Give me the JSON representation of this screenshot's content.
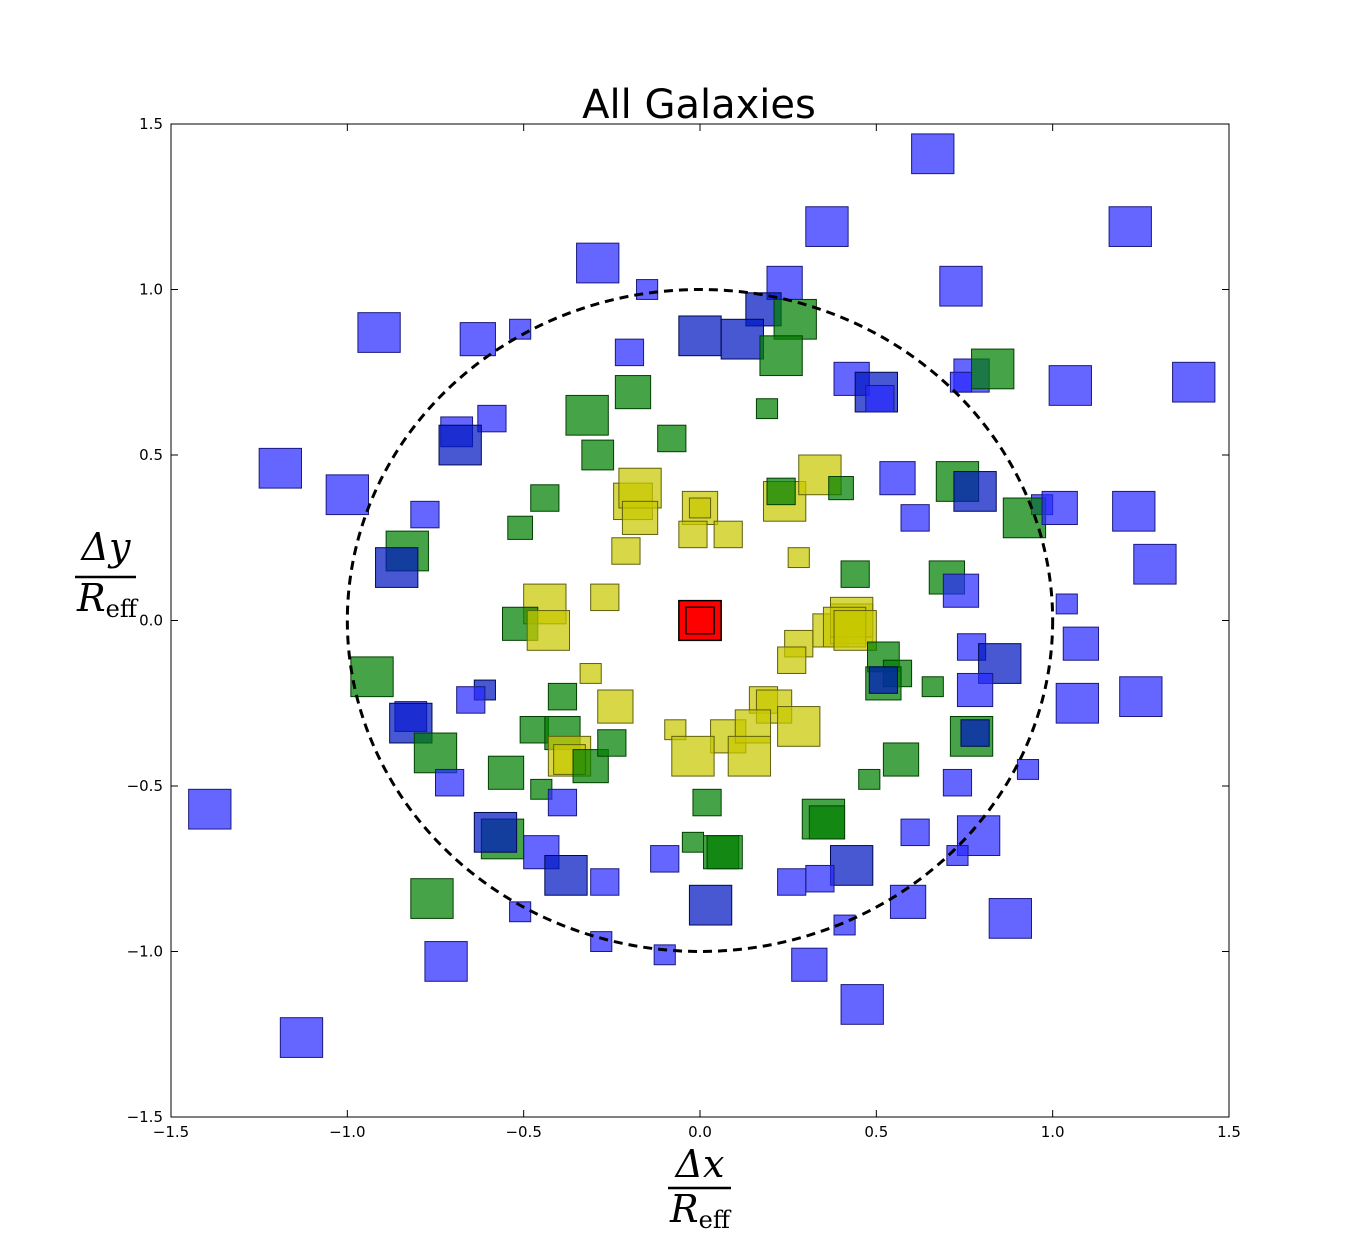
{
  "chart_data": {
    "type": "scatter",
    "title": "All Galaxies",
    "xlabel": {
      "numerator": "Δx",
      "denominator": "R",
      "subscript": "eff"
    },
    "ylabel": {
      "numerator": "Δy",
      "denominator": "R",
      "subscript": "eff"
    },
    "xlim": [
      -1.5,
      1.5
    ],
    "ylim": [
      -1.5,
      1.5
    ],
    "xticks": [
      "−1.5",
      "−1.0",
      "−0.5",
      "0.0",
      "0.5",
      "1.0",
      "1.5"
    ],
    "yticks": [
      "−1.5",
      "−1.0",
      "−0.5",
      "0.0",
      "0.5",
      "1.0",
      "1.5"
    ],
    "xtick_values": [
      -1.5,
      -1.0,
      -0.5,
      0.0,
      0.5,
      1.0,
      1.5
    ],
    "ytick_values": [
      -1.5,
      -1.0,
      -0.5,
      0.0,
      0.5,
      1.0,
      1.5
    ],
    "grid": false,
    "legend": "none",
    "colors": {
      "blue": "#2a2aff",
      "darkblue": "#0018c0",
      "green": "#008000",
      "yellow": "#c8c800",
      "red": "#ff0000"
    },
    "reference_circle": {
      "center": [
        0,
        0
      ],
      "radius": 1.0,
      "style": "dashed"
    },
    "points": [
      {
        "x": 0.66,
        "y": 1.41,
        "color": "blue",
        "size": 0.12
      },
      {
        "x": 0.36,
        "y": 1.19,
        "color": "blue",
        "size": 0.12
      },
      {
        "x": 1.22,
        "y": 1.19,
        "color": "blue",
        "size": 0.12
      },
      {
        "x": -0.29,
        "y": 1.08,
        "color": "blue",
        "size": 0.12
      },
      {
        "x": 0.24,
        "y": 1.02,
        "color": "blue",
        "size": 0.1
      },
      {
        "x": 0.74,
        "y": 1.01,
        "color": "blue",
        "size": 0.12
      },
      {
        "x": -0.15,
        "y": 1.0,
        "color": "blue",
        "size": 0.06
      },
      {
        "x": -0.91,
        "y": 0.87,
        "color": "blue",
        "size": 0.12
      },
      {
        "x": -0.63,
        "y": 0.85,
        "color": "blue",
        "size": 0.1
      },
      {
        "x": -0.51,
        "y": 0.88,
        "color": "blue",
        "size": 0.06
      },
      {
        "x": 0.18,
        "y": 0.94,
        "color": "darkblue",
        "size": 0.1
      },
      {
        "x": 0.27,
        "y": 0.91,
        "color": "green",
        "size": 0.12
      },
      {
        "x": 0.0,
        "y": 0.86,
        "color": "darkblue",
        "size": 0.12
      },
      {
        "x": 0.12,
        "y": 0.85,
        "color": "darkblue",
        "size": 0.12
      },
      {
        "x": 0.23,
        "y": 0.8,
        "color": "green",
        "size": 0.12
      },
      {
        "x": -0.2,
        "y": 0.81,
        "color": "blue",
        "size": 0.08
      },
      {
        "x": 0.43,
        "y": 0.73,
        "color": "blue",
        "size": 0.1
      },
      {
        "x": 0.5,
        "y": 0.69,
        "color": "darkblue",
        "size": 0.12
      },
      {
        "x": 0.51,
        "y": 0.67,
        "color": "blue",
        "size": 0.08
      },
      {
        "x": 0.77,
        "y": 0.74,
        "color": "blue",
        "size": 0.1
      },
      {
        "x": 0.74,
        "y": 0.72,
        "color": "blue",
        "size": 0.06
      },
      {
        "x": 0.83,
        "y": 0.76,
        "color": "green",
        "size": 0.12
      },
      {
        "x": 1.05,
        "y": 0.71,
        "color": "blue",
        "size": 0.12
      },
      {
        "x": 1.4,
        "y": 0.72,
        "color": "blue",
        "size": 0.12
      },
      {
        "x": -0.19,
        "y": 0.69,
        "color": "green",
        "size": 0.1
      },
      {
        "x": -0.32,
        "y": 0.62,
        "color": "green",
        "size": 0.12
      },
      {
        "x": 0.19,
        "y": 0.64,
        "color": "green",
        "size": 0.06
      },
      {
        "x": -0.08,
        "y": 0.55,
        "color": "green",
        "size": 0.08
      },
      {
        "x": -0.59,
        "y": 0.61,
        "color": "blue",
        "size": 0.08
      },
      {
        "x": -0.69,
        "y": 0.57,
        "color": "blue",
        "size": 0.09
      },
      {
        "x": -0.68,
        "y": 0.53,
        "color": "darkblue",
        "size": 0.12
      },
      {
        "x": -0.29,
        "y": 0.5,
        "color": "green",
        "size": 0.09
      },
      {
        "x": -1.19,
        "y": 0.46,
        "color": "blue",
        "size": 0.12
      },
      {
        "x": -1.0,
        "y": 0.38,
        "color": "blue",
        "size": 0.12
      },
      {
        "x": 0.56,
        "y": 0.43,
        "color": "blue",
        "size": 0.1
      },
      {
        "x": 0.73,
        "y": 0.42,
        "color": "green",
        "size": 0.12
      },
      {
        "x": 0.78,
        "y": 0.39,
        "color": "darkblue",
        "size": 0.12
      },
      {
        "x": -0.19,
        "y": 0.36,
        "color": "yellow",
        "size": 0.11
      },
      {
        "x": -0.17,
        "y": 0.4,
        "color": "yellow",
        "size": 0.12
      },
      {
        "x": -0.17,
        "y": 0.31,
        "color": "yellow",
        "size": 0.1
      },
      {
        "x": -0.44,
        "y": 0.37,
        "color": "green",
        "size": 0.08
      },
      {
        "x": 0.0,
        "y": 0.34,
        "color": "yellow",
        "size": 0.1
      },
      {
        "x": 0.0,
        "y": 0.34,
        "color": "yellow",
        "size": 0.06
      },
      {
        "x": 0.24,
        "y": 0.36,
        "color": "yellow",
        "size": 0.12
      },
      {
        "x": 0.23,
        "y": 0.39,
        "color": "green",
        "size": 0.08
      },
      {
        "x": 0.34,
        "y": 0.44,
        "color": "yellow",
        "size": 0.12
      },
      {
        "x": 0.4,
        "y": 0.4,
        "color": "green",
        "size": 0.07
      },
      {
        "x": 0.61,
        "y": 0.31,
        "color": "blue",
        "size": 0.08
      },
      {
        "x": 0.97,
        "y": 0.35,
        "color": "blue",
        "size": 0.06
      },
      {
        "x": 0.92,
        "y": 0.31,
        "color": "green",
        "size": 0.12
      },
      {
        "x": 1.02,
        "y": 0.34,
        "color": "blue",
        "size": 0.1
      },
      {
        "x": 1.23,
        "y": 0.33,
        "color": "blue",
        "size": 0.12
      },
      {
        "x": -0.78,
        "y": 0.32,
        "color": "blue",
        "size": 0.08
      },
      {
        "x": -0.51,
        "y": 0.28,
        "color": "green",
        "size": 0.07
      },
      {
        "x": -0.02,
        "y": 0.26,
        "color": "yellow",
        "size": 0.08
      },
      {
        "x": 0.08,
        "y": 0.26,
        "color": "yellow",
        "size": 0.08
      },
      {
        "x": -0.21,
        "y": 0.21,
        "color": "yellow",
        "size": 0.08
      },
      {
        "x": 0.28,
        "y": 0.19,
        "color": "yellow",
        "size": 0.06
      },
      {
        "x": -0.83,
        "y": 0.21,
        "color": "green",
        "size": 0.12
      },
      {
        "x": -0.86,
        "y": 0.16,
        "color": "darkblue",
        "size": 0.12
      },
      {
        "x": 0.44,
        "y": 0.14,
        "color": "green",
        "size": 0.08
      },
      {
        "x": 0.7,
        "y": 0.13,
        "color": "green",
        "size": 0.1
      },
      {
        "x": 0.74,
        "y": 0.09,
        "color": "blue",
        "size": 0.1
      },
      {
        "x": 1.29,
        "y": 0.17,
        "color": "blue",
        "size": 0.12
      },
      {
        "x": 1.04,
        "y": 0.05,
        "color": "blue",
        "size": 0.06
      },
      {
        "x": -0.44,
        "y": 0.05,
        "color": "yellow",
        "size": 0.12
      },
      {
        "x": -0.27,
        "y": 0.07,
        "color": "yellow",
        "size": 0.08
      },
      {
        "x": -0.51,
        "y": -0.01,
        "color": "green",
        "size": 0.1
      },
      {
        "x": -0.43,
        "y": -0.03,
        "color": "yellow",
        "size": 0.12
      },
      {
        "x": 0.0,
        "y": 0.0,
        "color": "red",
        "size": 0.12
      },
      {
        "x": 0.0,
        "y": 0.0,
        "color": "red",
        "size": 0.08
      },
      {
        "x": 0.37,
        "y": -0.03,
        "color": "yellow",
        "size": 0.1
      },
      {
        "x": 0.43,
        "y": -0.01,
        "color": "yellow",
        "size": 0.12
      },
      {
        "x": 0.43,
        "y": 0.01,
        "color": "yellow",
        "size": 0.12
      },
      {
        "x": 0.41,
        "y": -0.02,
        "color": "yellow",
        "size": 0.12
      },
      {
        "x": 0.44,
        "y": -0.03,
        "color": "yellow",
        "size": 0.12
      },
      {
        "x": 0.28,
        "y": -0.07,
        "color": "yellow",
        "size": 0.08
      },
      {
        "x": 0.26,
        "y": -0.12,
        "color": "yellow",
        "size": 0.08
      },
      {
        "x": 0.52,
        "y": -0.11,
        "color": "green",
        "size": 0.09
      },
      {
        "x": 0.56,
        "y": -0.16,
        "color": "green",
        "size": 0.08
      },
      {
        "x": 0.52,
        "y": -0.19,
        "color": "green",
        "size": 0.1
      },
      {
        "x": 0.52,
        "y": -0.18,
        "color": "darkblue",
        "size": 0.08
      },
      {
        "x": 0.66,
        "y": -0.2,
        "color": "green",
        "size": 0.06
      },
      {
        "x": 0.77,
        "y": -0.08,
        "color": "blue",
        "size": 0.08
      },
      {
        "x": 0.85,
        "y": -0.13,
        "color": "darkblue",
        "size": 0.12
      },
      {
        "x": 0.78,
        "y": -0.21,
        "color": "blue",
        "size": 0.1
      },
      {
        "x": 1.08,
        "y": -0.07,
        "color": "blue",
        "size": 0.1
      },
      {
        "x": 1.07,
        "y": -0.25,
        "color": "blue",
        "size": 0.12
      },
      {
        "x": 1.25,
        "y": -0.23,
        "color": "blue",
        "size": 0.12
      },
      {
        "x": -0.93,
        "y": -0.17,
        "color": "green",
        "size": 0.12
      },
      {
        "x": -0.39,
        "y": -0.23,
        "color": "green",
        "size": 0.08
      },
      {
        "x": -0.61,
        "y": -0.21,
        "color": "darkblue",
        "size": 0.06
      },
      {
        "x": -0.65,
        "y": -0.24,
        "color": "blue",
        "size": 0.08
      },
      {
        "x": -0.82,
        "y": -0.29,
        "color": "blue",
        "size": 0.09
      },
      {
        "x": -0.82,
        "y": -0.31,
        "color": "darkblue",
        "size": 0.12
      },
      {
        "x": -0.31,
        "y": -0.16,
        "color": "yellow",
        "size": 0.06
      },
      {
        "x": -0.24,
        "y": -0.26,
        "color": "yellow",
        "size": 0.1
      },
      {
        "x": 0.18,
        "y": -0.24,
        "color": "yellow",
        "size": 0.08
      },
      {
        "x": 0.21,
        "y": -0.26,
        "color": "yellow",
        "size": 0.1
      },
      {
        "x": -0.07,
        "y": -0.33,
        "color": "yellow",
        "size": 0.06
      },
      {
        "x": 0.08,
        "y": -0.35,
        "color": "yellow",
        "size": 0.1
      },
      {
        "x": 0.15,
        "y": -0.32,
        "color": "yellow",
        "size": 0.1
      },
      {
        "x": 0.28,
        "y": -0.32,
        "color": "yellow",
        "size": 0.12
      },
      {
        "x": 0.14,
        "y": -0.41,
        "color": "yellow",
        "size": 0.12
      },
      {
        "x": -0.02,
        "y": -0.41,
        "color": "yellow",
        "size": 0.12
      },
      {
        "x": -0.47,
        "y": -0.33,
        "color": "green",
        "size": 0.08
      },
      {
        "x": -0.39,
        "y": -0.34,
        "color": "green",
        "size": 0.1
      },
      {
        "x": -0.37,
        "y": -0.41,
        "color": "yellow",
        "size": 0.12
      },
      {
        "x": -0.37,
        "y": -0.42,
        "color": "yellow",
        "size": 0.09
      },
      {
        "x": -0.31,
        "y": -0.44,
        "color": "green",
        "size": 0.1
      },
      {
        "x": -0.25,
        "y": -0.37,
        "color": "green",
        "size": 0.08
      },
      {
        "x": -0.75,
        "y": -0.4,
        "color": "green",
        "size": 0.12
      },
      {
        "x": -0.55,
        "y": -0.46,
        "color": "green",
        "size": 0.1
      },
      {
        "x": -0.71,
        "y": -0.49,
        "color": "blue",
        "size": 0.08
      },
      {
        "x": -0.45,
        "y": -0.51,
        "color": "green",
        "size": 0.06
      },
      {
        "x": -0.39,
        "y": -0.55,
        "color": "blue",
        "size": 0.08
      },
      {
        "x": 0.57,
        "y": -0.42,
        "color": "green",
        "size": 0.1
      },
      {
        "x": 0.48,
        "y": -0.48,
        "color": "green",
        "size": 0.06
      },
      {
        "x": 0.73,
        "y": -0.49,
        "color": "blue",
        "size": 0.08
      },
      {
        "x": 0.77,
        "y": -0.35,
        "color": "green",
        "size": 0.12
      },
      {
        "x": 0.78,
        "y": -0.34,
        "color": "darkblue",
        "size": 0.08
      },
      {
        "x": 0.93,
        "y": -0.45,
        "color": "blue",
        "size": 0.06
      },
      {
        "x": 0.02,
        "y": -0.55,
        "color": "green",
        "size": 0.08
      },
      {
        "x": 0.35,
        "y": -0.6,
        "color": "green",
        "size": 0.12
      },
      {
        "x": 0.36,
        "y": -0.61,
        "color": "green",
        "size": 0.1
      },
      {
        "x": -0.56,
        "y": -0.66,
        "color": "green",
        "size": 0.12
      },
      {
        "x": -0.58,
        "y": -0.64,
        "color": "darkblue",
        "size": 0.12
      },
      {
        "x": -0.45,
        "y": -0.7,
        "color": "blue",
        "size": 0.1
      },
      {
        "x": -0.38,
        "y": -0.77,
        "color": "darkblue",
        "size": 0.12
      },
      {
        "x": -0.27,
        "y": -0.79,
        "color": "blue",
        "size": 0.08
      },
      {
        "x": -0.1,
        "y": -0.72,
        "color": "blue",
        "size": 0.08
      },
      {
        "x": -0.02,
        "y": -0.67,
        "color": "green",
        "size": 0.06
      },
      {
        "x": 0.06,
        "y": -0.7,
        "color": "green",
        "size": 0.1
      },
      {
        "x": 0.07,
        "y": -0.7,
        "color": "green",
        "size": 0.1
      },
      {
        "x": 0.61,
        "y": -0.64,
        "color": "blue",
        "size": 0.08
      },
      {
        "x": 0.79,
        "y": -0.65,
        "color": "blue",
        "size": 0.12
      },
      {
        "x": 0.73,
        "y": -0.71,
        "color": "blue",
        "size": 0.06
      },
      {
        "x": 0.43,
        "y": -0.74,
        "color": "darkblue",
        "size": 0.12
      },
      {
        "x": 0.34,
        "y": -0.78,
        "color": "blue",
        "size": 0.08
      },
      {
        "x": 0.26,
        "y": -0.79,
        "color": "blue",
        "size": 0.08
      },
      {
        "x": -0.76,
        "y": -0.84,
        "color": "green",
        "size": 0.12
      },
      {
        "x": 0.03,
        "y": -0.86,
        "color": "darkblue",
        "size": 0.12
      },
      {
        "x": -0.51,
        "y": -0.88,
        "color": "blue",
        "size": 0.06
      },
      {
        "x": 0.59,
        "y": -0.85,
        "color": "blue",
        "size": 0.1
      },
      {
        "x": 0.88,
        "y": -0.9,
        "color": "blue",
        "size": 0.12
      },
      {
        "x": 0.41,
        "y": -0.92,
        "color": "blue",
        "size": 0.06
      },
      {
        "x": -0.28,
        "y": -0.97,
        "color": "blue",
        "size": 0.06
      },
      {
        "x": -0.1,
        "y": -1.01,
        "color": "blue",
        "size": 0.06
      },
      {
        "x": 0.31,
        "y": -1.04,
        "color": "blue",
        "size": 0.1
      },
      {
        "x": -0.72,
        "y": -1.03,
        "color": "blue",
        "size": 0.12
      },
      {
        "x": -1.39,
        "y": -0.57,
        "color": "blue",
        "size": 0.12
      },
      {
        "x": -1.13,
        "y": -1.26,
        "color": "blue",
        "size": 0.12
      },
      {
        "x": 0.46,
        "y": -1.16,
        "color": "blue",
        "size": 0.12
      }
    ]
  }
}
